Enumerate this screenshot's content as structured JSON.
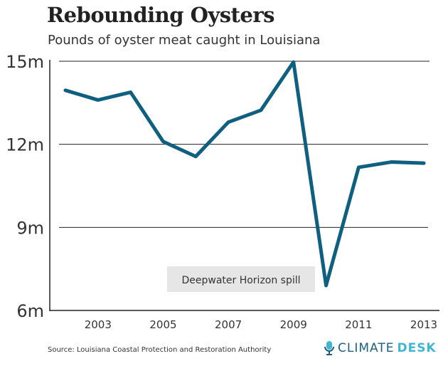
{
  "header": {
    "title": "Rebounding Oysters",
    "subtitle": "Pounds of oyster meat caught in Louisiana"
  },
  "footer": {
    "source": "Source: Louisiana Coastal Protection and Restoration Authority",
    "logo_part1": "CLIMATE",
    "logo_part2": "DESK",
    "logo_icon": "microphone-icon"
  },
  "colors": {
    "line": "#0f5f80",
    "annotation_bg": "#e6e6e6",
    "logo_dark": "#1e5f80",
    "logo_light": "#3fb6d3"
  },
  "chart_data": {
    "type": "line",
    "title": "Rebounding Oysters",
    "subtitle": "Pounds of oyster meat caught in Louisiana",
    "x": [
      2002,
      2003,
      2004,
      2005,
      2006,
      2007,
      2008,
      2009,
      2010,
      2011,
      2012,
      2013
    ],
    "series": [
      {
        "values": [
          13.95,
          13.6,
          13.88,
          12.1,
          11.56,
          12.8,
          13.23,
          14.97,
          6.9,
          11.17,
          11.36,
          11.32
        ]
      }
    ],
    "unit": "million pounds",
    "ylim": [
      6,
      15
    ],
    "yticks": [
      6,
      9,
      12,
      15
    ],
    "ytick_labels": [
      "6m",
      "9m",
      "12m",
      "15m"
    ],
    "xticks": [
      2003,
      2005,
      2007,
      2009,
      2011,
      2013
    ],
    "xtick_labels": [
      "2003",
      "2005",
      "2007",
      "2009",
      "2011",
      "2013"
    ],
    "grid": "horizontal",
    "annotations": [
      {
        "text": "Deepwater Horizon spill"
      }
    ]
  }
}
